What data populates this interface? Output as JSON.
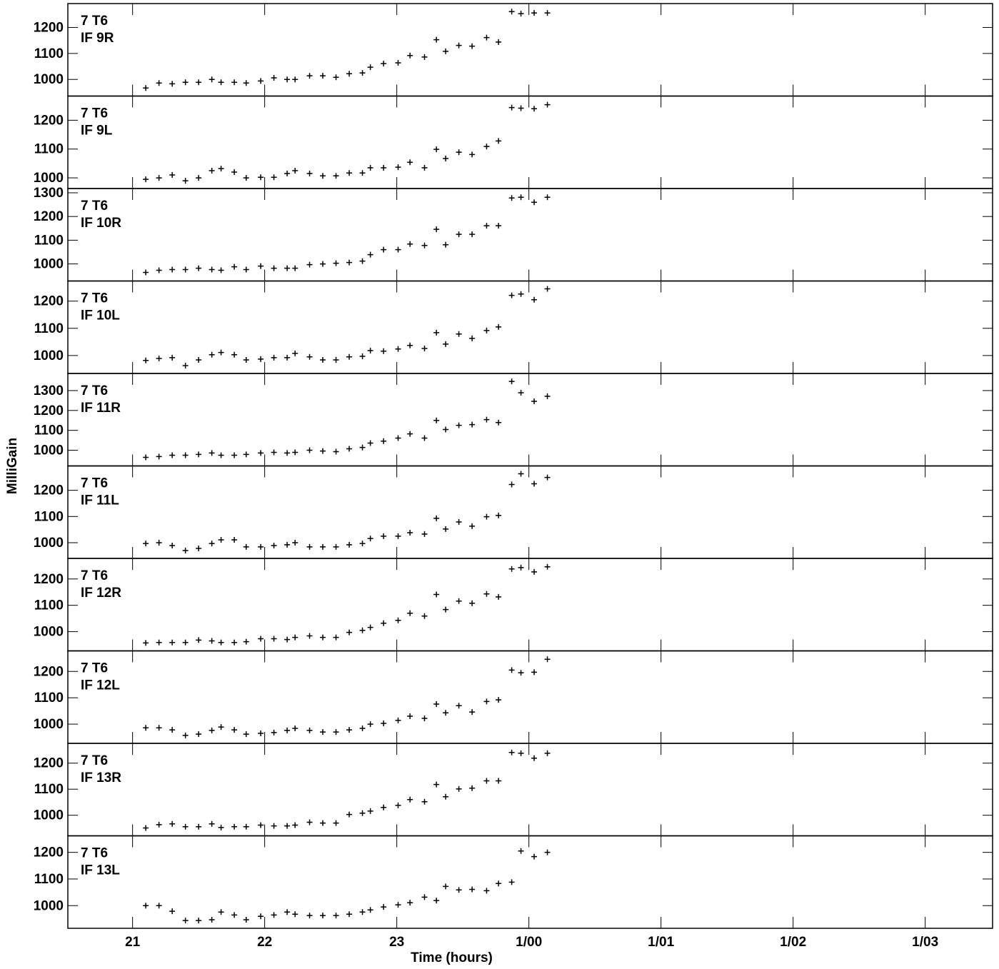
{
  "chart_data": [
    {
      "type": "scatter",
      "y_label": "MilliGain",
      "annotations": [
        "7 T6",
        "IF 9R"
      ],
      "color": "#000000",
      "xlim": [
        20.51,
        27.51
      ],
      "xticks": [
        21,
        22,
        23,
        {
          "value": 24,
          "label": "1/00"
        },
        {
          "value": 25,
          "label": "1/01"
        },
        {
          "value": 26,
          "label": "1/02"
        },
        {
          "value": 27,
          "label": "1/03"
        }
      ],
      "ylim": [
        936,
        1292
      ],
      "yticks": [
        1000,
        1100,
        1200
      ],
      "x": [
        21.1,
        21.2,
        21.3,
        21.4,
        21.5,
        21.6,
        21.67,
        21.77,
        21.86,
        21.97,
        22.07,
        22.17,
        22.23,
        22.34,
        22.44,
        22.54,
        22.64,
        22.74,
        22.8,
        22.9,
        23.01,
        23.1,
        23.21,
        23.3,
        23.37,
        23.47,
        23.57,
        23.68,
        23.77,
        23.87,
        23.94,
        24.04,
        24.14
      ],
      "values": [
        967,
        986,
        983,
        989,
        989,
        1000,
        989,
        989,
        986,
        994,
        1006,
        1000,
        1000,
        1014,
        1014,
        1008,
        1022,
        1025,
        1047,
        1061,
        1064,
        1092,
        1086,
        1153,
        1108,
        1131,
        1128,
        1161,
        1144,
        1261,
        1253,
        1256,
        1256
      ]
    },
    {
      "type": "scatter",
      "annotations": [
        "7 T6",
        "IF 9L"
      ],
      "color": "#000000",
      "xlim": [
        20.51,
        27.51
      ],
      "xticks": [
        21,
        22,
        23,
        {
          "value": 24,
          "label": "1/00"
        },
        {
          "value": 25,
          "label": "1/01"
        },
        {
          "value": 26,
          "label": "1/02"
        },
        {
          "value": 27,
          "label": "1/03"
        }
      ],
      "ylim": [
        963,
        1284
      ],
      "yticks": [
        1000,
        1100,
        1200
      ],
      "x": [
        21.1,
        21.2,
        21.3,
        21.4,
        21.5,
        21.6,
        21.67,
        21.77,
        21.86,
        21.97,
        22.07,
        22.17,
        22.23,
        22.34,
        22.44,
        22.54,
        22.64,
        22.74,
        22.8,
        22.9,
        23.01,
        23.1,
        23.21,
        23.3,
        23.37,
        23.47,
        23.57,
        23.68,
        23.77,
        23.87,
        23.94,
        24.04,
        24.14
      ],
      "values": [
        995,
        1000,
        1010,
        990,
        1000,
        1025,
        1032,
        1020,
        1000,
        1002,
        1002,
        1015,
        1025,
        1015,
        1007,
        1007,
        1017,
        1017,
        1035,
        1035,
        1037,
        1054,
        1035,
        1099,
        1067,
        1089,
        1081,
        1109,
        1128,
        1244,
        1242,
        1240,
        1254
      ]
    },
    {
      "type": "scatter",
      "annotations": [
        "7 T6",
        "IF 10R"
      ],
      "color": "#000000",
      "xlim": [
        20.51,
        27.51
      ],
      "xticks": [
        21,
        22,
        23,
        {
          "value": 24,
          "label": "1/00"
        },
        {
          "value": 25,
          "label": "1/01"
        },
        {
          "value": 26,
          "label": "1/02"
        },
        {
          "value": 27,
          "label": "1/03"
        }
      ],
      "ylim": [
        928,
        1318
      ],
      "yticks": [
        1000,
        1100,
        1200,
        1300
      ],
      "x": [
        21.1,
        21.2,
        21.3,
        21.4,
        21.5,
        21.6,
        21.67,
        21.77,
        21.86,
        21.97,
        22.07,
        22.17,
        22.23,
        22.34,
        22.44,
        22.54,
        22.64,
        22.74,
        22.8,
        22.9,
        23.01,
        23.1,
        23.21,
        23.3,
        23.37,
        23.47,
        23.57,
        23.68,
        23.77,
        23.87,
        23.94,
        24.04,
        24.14
      ],
      "values": [
        964,
        973,
        976,
        976,
        982,
        976,
        973,
        988,
        976,
        991,
        982,
        982,
        982,
        997,
        1000,
        1003,
        1006,
        1012,
        1039,
        1060,
        1060,
        1084,
        1078,
        1146,
        1081,
        1125,
        1125,
        1161,
        1161,
        1278,
        1281,
        1260,
        1281
      ]
    },
    {
      "type": "scatter",
      "annotations": [
        "7 T6",
        "IF 10L"
      ],
      "color": "#000000",
      "xlim": [
        20.51,
        27.51
      ],
      "xticks": [
        21,
        22,
        23,
        {
          "value": 24,
          "label": "1/00"
        },
        {
          "value": 25,
          "label": "1/01"
        },
        {
          "value": 26,
          "label": "1/02"
        },
        {
          "value": 27,
          "label": "1/03"
        }
      ],
      "ylim": [
        934,
        1274
      ],
      "yticks": [
        1000,
        1100,
        1200
      ],
      "x": [
        21.1,
        21.2,
        21.3,
        21.4,
        21.5,
        21.6,
        21.67,
        21.77,
        21.86,
        21.97,
        22.07,
        22.17,
        22.23,
        22.34,
        22.44,
        22.54,
        22.64,
        22.74,
        22.8,
        22.9,
        23.01,
        23.1,
        23.21,
        23.3,
        23.37,
        23.47,
        23.57,
        23.68,
        23.77,
        23.87,
        23.94,
        24.04,
        24.14
      ],
      "values": [
        982,
        989,
        992,
        963,
        984,
        1003,
        1011,
        1003,
        984,
        987,
        992,
        992,
        1008,
        995,
        984,
        984,
        995,
        997,
        1018,
        1016,
        1024,
        1037,
        1026,
        1084,
        1042,
        1079,
        1063,
        1092,
        1105,
        1221,
        1226,
        1205,
        1245
      ]
    },
    {
      "type": "scatter",
      "annotations": [
        "7 T6",
        "IF 11R"
      ],
      "color": "#000000",
      "xlim": [
        20.51,
        27.51
      ],
      "xticks": [
        21,
        22,
        23,
        {
          "value": 24,
          "label": "1/00"
        },
        {
          "value": 25,
          "label": "1/01"
        },
        {
          "value": 26,
          "label": "1/02"
        },
        {
          "value": 27,
          "label": "1/03"
        }
      ],
      "ylim": [
        921,
        1386
      ],
      "yticks": [
        1000,
        1100,
        1200,
        1300
      ],
      "x": [
        21.1,
        21.2,
        21.3,
        21.4,
        21.5,
        21.6,
        21.67,
        21.77,
        21.86,
        21.97,
        22.07,
        22.17,
        22.23,
        22.34,
        22.44,
        22.54,
        22.64,
        22.74,
        22.8,
        22.9,
        23.01,
        23.1,
        23.21,
        23.3,
        23.37,
        23.47,
        23.57,
        23.68,
        23.77,
        23.87,
        23.94,
        24.04,
        24.14
      ],
      "values": [
        964,
        968,
        975,
        975,
        979,
        986,
        975,
        975,
        979,
        986,
        989,
        986,
        989,
        1000,
        996,
        993,
        1007,
        1014,
        1036,
        1046,
        1061,
        1082,
        1061,
        1150,
        1104,
        1125,
        1129,
        1154,
        1139,
        1346,
        1289,
        1246,
        1271
      ]
    },
    {
      "type": "scatter",
      "annotations": [
        "7 T6",
        "IF 11L"
      ],
      "color": "#000000",
      "xlim": [
        20.51,
        27.51
      ],
      "xticks": [
        21,
        22,
        23,
        {
          "value": 24,
          "label": "1/00"
        },
        {
          "value": 25,
          "label": "1/01"
        },
        {
          "value": 26,
          "label": "1/02"
        },
        {
          "value": 27,
          "label": "1/03"
        }
      ],
      "ylim": [
        940,
        1293
      ],
      "yticks": [
        1000,
        1100,
        1200
      ],
      "x": [
        21.1,
        21.2,
        21.3,
        21.4,
        21.5,
        21.6,
        21.67,
        21.77,
        21.86,
        21.97,
        22.07,
        22.17,
        22.23,
        22.34,
        22.44,
        22.54,
        22.64,
        22.74,
        22.8,
        22.9,
        23.01,
        23.1,
        23.21,
        23.3,
        23.37,
        23.47,
        23.57,
        23.68,
        23.77,
        23.87,
        23.94,
        24.04,
        24.14
      ],
      "values": [
        997,
        1000,
        989,
        970,
        978,
        997,
        1011,
        1011,
        984,
        984,
        989,
        992,
        1000,
        984,
        984,
        984,
        992,
        997,
        1016,
        1025,
        1025,
        1038,
        1033,
        1093,
        1052,
        1079,
        1063,
        1099,
        1104,
        1222,
        1263,
        1225,
        1249
      ]
    },
    {
      "type": "scatter",
      "annotations": [
        "7 T6",
        "IF 12R"
      ],
      "color": "#000000",
      "xlim": [
        20.51,
        27.51
      ],
      "xticks": [
        21,
        22,
        23,
        {
          "value": 24,
          "label": "1/00"
        },
        {
          "value": 25,
          "label": "1/01"
        },
        {
          "value": 26,
          "label": "1/02"
        },
        {
          "value": 27,
          "label": "1/03"
        }
      ],
      "ylim": [
        927,
        1278
      ],
      "yticks": [
        1000,
        1100,
        1200
      ],
      "x": [
        21.1,
        21.2,
        21.3,
        21.4,
        21.5,
        21.6,
        21.67,
        21.77,
        21.86,
        21.97,
        22.07,
        22.17,
        22.23,
        22.34,
        22.44,
        22.54,
        22.64,
        22.74,
        22.8,
        22.9,
        23.01,
        23.1,
        23.21,
        23.3,
        23.37,
        23.47,
        23.57,
        23.68,
        23.77,
        23.87,
        23.94,
        24.04,
        24.14
      ],
      "values": [
        957,
        959,
        959,
        959,
        968,
        965,
        959,
        959,
        962,
        973,
        973,
        970,
        978,
        984,
        978,
        978,
        997,
        1005,
        1016,
        1032,
        1043,
        1070,
        1059,
        1141,
        1084,
        1116,
        1108,
        1143,
        1132,
        1238,
        1243,
        1227,
        1246
      ]
    },
    {
      "type": "scatter",
      "annotations": [
        "7 T6",
        "IF 12L"
      ],
      "color": "#000000",
      "xlim": [
        20.51,
        27.51
      ],
      "xticks": [
        21,
        22,
        23,
        {
          "value": 24,
          "label": "1/00"
        },
        {
          "value": 25,
          "label": "1/01"
        },
        {
          "value": 26,
          "label": "1/02"
        },
        {
          "value": 27,
          "label": "1/03"
        }
      ],
      "ylim": [
        927,
        1278
      ],
      "yticks": [
        1000,
        1100,
        1200
      ],
      "x": [
        21.1,
        21.2,
        21.3,
        21.4,
        21.5,
        21.6,
        21.67,
        21.77,
        21.86,
        21.97,
        22.07,
        22.17,
        22.23,
        22.34,
        22.44,
        22.54,
        22.64,
        22.74,
        22.8,
        22.9,
        23.01,
        23.1,
        23.21,
        23.3,
        23.37,
        23.47,
        23.57,
        23.68,
        23.77,
        23.87,
        23.94,
        24.04,
        24.14
      ],
      "values": [
        986,
        986,
        978,
        957,
        962,
        976,
        989,
        978,
        962,
        965,
        968,
        976,
        984,
        976,
        970,
        970,
        978,
        984,
        1000,
        1003,
        1014,
        1030,
        1022,
        1076,
        1043,
        1070,
        1046,
        1086,
        1092,
        1205,
        1195,
        1197,
        1246
      ]
    },
    {
      "type": "scatter",
      "annotations": [
        "7 T6",
        "IF 13R"
      ],
      "color": "#000000",
      "xlim": [
        20.51,
        27.51
      ],
      "xticks": [
        21,
        22,
        23,
        {
          "value": 24,
          "label": "1/00"
        },
        {
          "value": 25,
          "label": "1/01"
        },
        {
          "value": 26,
          "label": "1/02"
        },
        {
          "value": 27,
          "label": "1/03"
        }
      ],
      "ylim": [
        921,
        1276
      ],
      "yticks": [
        1000,
        1100,
        1200
      ],
      "x": [
        21.1,
        21.2,
        21.3,
        21.4,
        21.5,
        21.6,
        21.67,
        21.77,
        21.86,
        21.97,
        22.07,
        22.17,
        22.23,
        22.34,
        22.44,
        22.54,
        22.64,
        22.74,
        22.8,
        22.9,
        23.01,
        23.1,
        23.21,
        23.3,
        23.37,
        23.47,
        23.57,
        23.68,
        23.77,
        23.87,
        23.94,
        24.04,
        24.14
      ],
      "values": [
        951,
        964,
        967,
        956,
        956,
        967,
        953,
        956,
        956,
        962,
        959,
        959,
        962,
        973,
        970,
        970,
        1003,
        1008,
        1016,
        1030,
        1038,
        1060,
        1052,
        1118,
        1071,
        1101,
        1104,
        1132,
        1132,
        1241,
        1238,
        1219,
        1238
      ]
    },
    {
      "type": "scatter",
      "annotations": [
        "7 T6",
        "IF 13L"
      ],
      "x_label": "Time (hours)",
      "color": "#000000",
      "xlim": [
        20.51,
        27.51
      ],
      "xticks": [
        21,
        22,
        23,
        {
          "value": 24,
          "label": "1/00"
        },
        {
          "value": 25,
          "label": "1/01"
        },
        {
          "value": 26,
          "label": "1/02"
        },
        {
          "value": 27,
          "label": "1/03"
        }
      ],
      "ylim": [
        915,
        1262
      ],
      "yticks": [
        1000,
        1100,
        1200
      ],
      "x": [
        21.1,
        21.2,
        21.3,
        21.4,
        21.5,
        21.6,
        21.67,
        21.77,
        21.86,
        21.97,
        22.07,
        22.17,
        22.23,
        22.34,
        22.44,
        22.54,
        22.64,
        22.74,
        22.8,
        22.9,
        23.01,
        23.1,
        23.21,
        23.3,
        23.37,
        23.47,
        23.57,
        23.68,
        23.77,
        23.87,
        23.94,
        24.04,
        24.14
      ],
      "values": [
        1000,
        1000,
        979,
        944,
        944,
        947,
        976,
        965,
        947,
        960,
        965,
        976,
        968,
        963,
        963,
        963,
        968,
        976,
        984,
        995,
        1003,
        1011,
        1032,
        1019,
        1072,
        1059,
        1061,
        1056,
        1083,
        1088,
        1205,
        1184,
        1200
      ]
    }
  ]
}
